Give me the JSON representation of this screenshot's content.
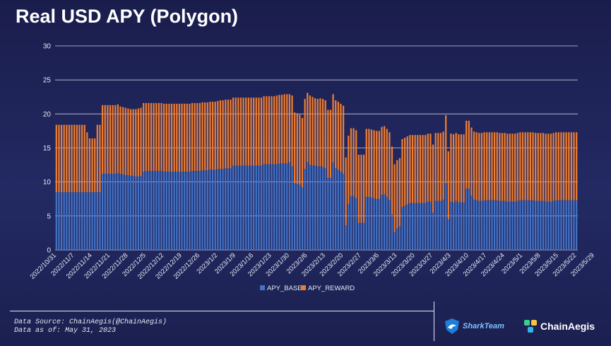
{
  "chart_title": "Real USD APY (Polygon)",
  "footer": {
    "source": "Data Source: ChainAegis(@ChainAegis)",
    "as_of": "Data as of: May 31, 2023"
  },
  "logos": {
    "sharkteam": "SharkTeam",
    "chainaegis": "ChainAegis"
  },
  "colors": {
    "base": "#4472c4",
    "reward": "#ed7d31",
    "grid": "#e6e8f2",
    "text": "#e6e8f2"
  },
  "chart_data": {
    "type": "bar",
    "stacked": true,
    "title": "Real USD APY (Polygon)",
    "xlabel": "",
    "ylabel": "",
    "ylim": [
      0,
      30
    ],
    "yticks": [
      0,
      5,
      10,
      15,
      20,
      25,
      30
    ],
    "grid": true,
    "legend_position": "bottom",
    "x_start_date": "2022-10-31",
    "tick_labels": [
      "2022/10/31",
      "2022/11/7",
      "2022/11/14",
      "2022/11/21",
      "2022/11/28",
      "2022/12/5",
      "2022/12/12",
      "2022/12/19",
      "2022/12/26",
      "2023/1/2",
      "2023/1/9",
      "2023/1/16",
      "2023/1/23",
      "2023/1/30",
      "2023/2/6",
      "2023/2/13",
      "2023/2/20",
      "2023/2/27",
      "2023/3/6",
      "2023/3/13",
      "2023/3/20",
      "2023/3/27",
      "2023/4/3",
      "2023/4/10",
      "2023/4/17",
      "2023/4/24",
      "2023/5/1",
      "2023/5/8",
      "2023/5/15",
      "2023/5/22",
      "2023/5/29"
    ],
    "series": [
      {
        "name": "APY_BASE",
        "values": [
          8.5,
          8.5,
          8.5,
          8.5,
          8.5,
          8.5,
          8.5,
          8.5,
          8.5,
          8.5,
          8.5,
          8.5,
          8.5,
          8.5,
          8.5,
          8.5,
          8.5,
          8.5,
          11.2,
          11.2,
          11.2,
          11.2,
          11.2,
          11.2,
          11.3,
          11.2,
          11.1,
          11.0,
          11.0,
          10.9,
          10.9,
          10.8,
          10.8,
          10.9,
          11.5,
          11.6,
          11.6,
          11.6,
          11.6,
          11.6,
          11.6,
          11.6,
          11.5,
          11.5,
          11.5,
          11.5,
          11.5,
          11.5,
          11.5,
          11.5,
          11.5,
          11.5,
          11.5,
          11.6,
          11.6,
          11.6,
          11.6,
          11.7,
          11.7,
          11.7,
          11.8,
          11.8,
          11.8,
          11.9,
          11.9,
          11.9,
          12.0,
          12.0,
          12.0,
          12.4,
          12.4,
          12.4,
          12.4,
          12.4,
          12.4,
          12.4,
          12.4,
          12.4,
          12.4,
          12.4,
          12.4,
          12.6,
          12.6,
          12.6,
          12.6,
          12.6,
          12.6,
          12.7,
          12.7,
          12.7,
          12.7,
          12.9,
          12.3,
          9.8,
          9.7,
          9.6,
          9.2,
          11.9,
          12.9,
          12.5,
          12.4,
          12.4,
          12.3,
          12.3,
          12.2,
          12.0,
          10.6,
          10.6,
          12.9,
          12.0,
          11.8,
          11.5,
          11.2,
          3.6,
          6.8,
          7.9,
          7.9,
          7.6,
          4.0,
          4.0,
          4.0,
          7.8,
          7.8,
          7.7,
          7.6,
          7.5,
          7.5,
          8.1,
          8.2,
          7.8,
          7.3,
          5.2,
          2.6,
          3.2,
          3.5,
          6.3,
          6.5,
          6.7,
          6.9,
          6.9,
          6.9,
          6.9,
          6.9,
          6.9,
          6.9,
          7.1,
          7.1,
          5.5,
          7.2,
          7.2,
          7.2,
          7.4,
          9.8,
          4.5,
          7.1,
          7.0,
          7.2,
          7.0,
          7.0,
          7.0,
          9.0,
          9.0,
          8.0,
          7.4,
          7.3,
          7.2,
          7.2,
          7.3,
          7.3,
          7.3,
          7.3,
          7.3,
          7.3,
          7.2,
          7.2,
          7.2,
          7.1,
          7.1,
          7.1,
          7.1,
          7.2,
          7.3,
          7.3,
          7.3,
          7.3,
          7.3,
          7.3,
          7.2,
          7.2,
          7.2,
          7.2,
          7.1,
          7.1,
          7.1,
          7.2,
          7.3,
          7.3,
          7.3,
          7.3,
          7.3,
          7.3,
          7.3,
          7.3,
          7.3
        ]
      },
      {
        "name": "APY_REWARD",
        "values": [
          9.9,
          9.9,
          9.9,
          9.9,
          9.9,
          9.9,
          9.9,
          9.9,
          9.9,
          9.9,
          9.9,
          9.9,
          8.8,
          7.9,
          7.9,
          7.9,
          9.9,
          9.9,
          10.1,
          10.1,
          10.1,
          10.1,
          10.1,
          10.1,
          10.1,
          9.9,
          9.9,
          9.9,
          9.8,
          9.8,
          9.8,
          9.9,
          10.0,
          10.0,
          10.1,
          10.0,
          10.0,
          10.0,
          10.0,
          10.0,
          10.0,
          10.0,
          10.0,
          10.0,
          10.0,
          10.0,
          10.0,
          10.0,
          10.0,
          10.0,
          10.0,
          10.0,
          10.0,
          10.0,
          10.0,
          10.0,
          10.0,
          10.0,
          10.0,
          10.0,
          10.0,
          10.0,
          10.0,
          10.0,
          10.1,
          10.1,
          10.1,
          10.1,
          10.1,
          10.0,
          10.0,
          10.0,
          10.0,
          10.0,
          10.0,
          10.0,
          10.0,
          10.0,
          10.0,
          10.0,
          10.0,
          10.0,
          10.0,
          10.0,
          10.0,
          10.0,
          10.1,
          10.1,
          10.1,
          10.2,
          10.2,
          10.0,
          10.4,
          10.4,
          10.4,
          10.3,
          10.2,
          10.3,
          10.2,
          10.2,
          10.1,
          9.9,
          9.9,
          10.0,
          10.0,
          10.0,
          10.0,
          10.0,
          10.0,
          10.0,
          10.0,
          10.0,
          10.0,
          10.0,
          10.0,
          10.0,
          10.0,
          10.0,
          10.0,
          10.0,
          10.0,
          10.0,
          10.0,
          10.0,
          10.0,
          10.0,
          10.0,
          10.0,
          10.0,
          10.0,
          10.0,
          10.0,
          10.0,
          10.0,
          10.0,
          10.0,
          10.0,
          10.0,
          10.0,
          10.0,
          10.0,
          10.0,
          10.0,
          10.0,
          10.0,
          10.0,
          10.0,
          10.0,
          10.0,
          10.0,
          10.0,
          10.0,
          10.0,
          10.0,
          10.0,
          10.0,
          10.0,
          10.0,
          10.0,
          10.0,
          10.0,
          10.0,
          10.0,
          10.0,
          10.0,
          10.0,
          10.0,
          10.0,
          10.0,
          10.0,
          10.0,
          10.0,
          10.0,
          10.0,
          10.0,
          10.0,
          10.0,
          10.0,
          10.0,
          10.0,
          10.0,
          10.0,
          10.0,
          10.0,
          10.0,
          10.0,
          10.0,
          10.0,
          10.0,
          10.0,
          10.0,
          10.0,
          10.0,
          10.0,
          10.0,
          10.0,
          10.0,
          10.0,
          10.0,
          10.0,
          10.0,
          10.0,
          10.0,
          10.0,
          10.0,
          10.0
        ]
      }
    ]
  }
}
